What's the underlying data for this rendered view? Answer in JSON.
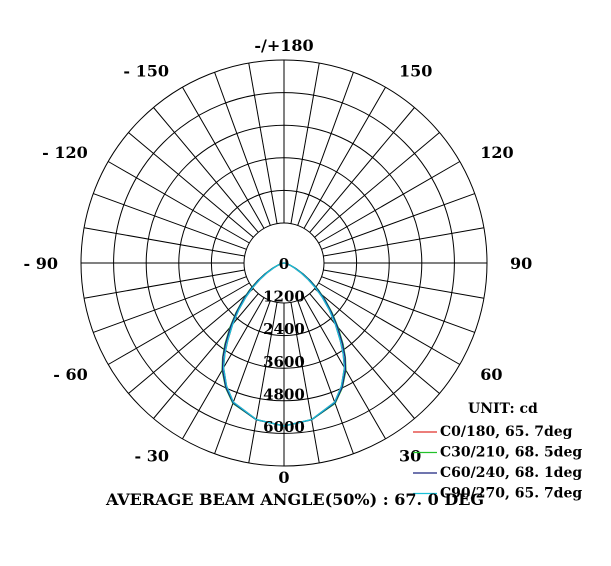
{
  "chart_data": {
    "type": "polar",
    "unit_label": "UNIT: cd",
    "radial_ticks": [
      "0",
      "1200",
      "2400",
      "3600",
      "4800",
      "6000"
    ],
    "radial_max": 6000,
    "angle_labels": [
      "-/+180",
      "150",
      "120",
      "90",
      "60",
      "30",
      "0",
      "- 30",
      "- 60",
      "- 90",
      "- 120",
      "- 150"
    ],
    "grid": true,
    "footer": "AVERAGE  BEAM ANGLE(50%) : 67. 0  DEG",
    "series": [
      {
        "name": "C0/180, 65. 7deg",
        "color": "#e0302a",
        "angles": [
          0,
          10,
          20,
          25,
          30,
          33,
          36,
          40,
          44,
          48,
          52,
          56,
          60,
          65,
          70,
          75,
          80,
          85,
          90
        ],
        "values": [
          6000,
          5850,
          5450,
          5000,
          4450,
          4000,
          3520,
          2940,
          2400,
          1900,
          1450,
          1050,
          720,
          420,
          230,
          120,
          50,
          15,
          0
        ]
      },
      {
        "name": "C30/210, 68. 5deg",
        "color": "#22c12a",
        "angles": [
          0,
          10,
          20,
          25,
          30,
          33,
          36,
          40,
          44,
          48,
          52,
          56,
          60,
          65,
          70,
          75,
          80,
          85,
          90
        ],
        "values": [
          6000,
          5860,
          5500,
          5080,
          4560,
          4150,
          3700,
          3100,
          2550,
          2050,
          1600,
          1180,
          820,
          480,
          260,
          130,
          55,
          15,
          0
        ]
      },
      {
        "name": "C60/240, 68. 1deg",
        "color": "#1a237e",
        "angles": [
          0,
          10,
          20,
          25,
          30,
          33,
          36,
          40,
          44,
          48,
          52,
          56,
          60,
          65,
          70,
          75,
          80,
          85,
          90
        ],
        "values": [
          6000,
          5860,
          5480,
          5060,
          4530,
          4120,
          3660,
          3060,
          2510,
          2010,
          1560,
          1150,
          800,
          470,
          255,
          125,
          55,
          15,
          0
        ]
      },
      {
        "name": "C90/270, 65. 7deg",
        "color": "#18c0d8",
        "angles": [
          0,
          10,
          20,
          25,
          30,
          33,
          36,
          40,
          44,
          48,
          52,
          56,
          60,
          65,
          70,
          75,
          80,
          85,
          90
        ],
        "values": [
          6000,
          5850,
          5450,
          5000,
          4450,
          4000,
          3520,
          2940,
          2400,
          1900,
          1450,
          1050,
          720,
          420,
          230,
          120,
          50,
          15,
          0
        ]
      }
    ]
  }
}
